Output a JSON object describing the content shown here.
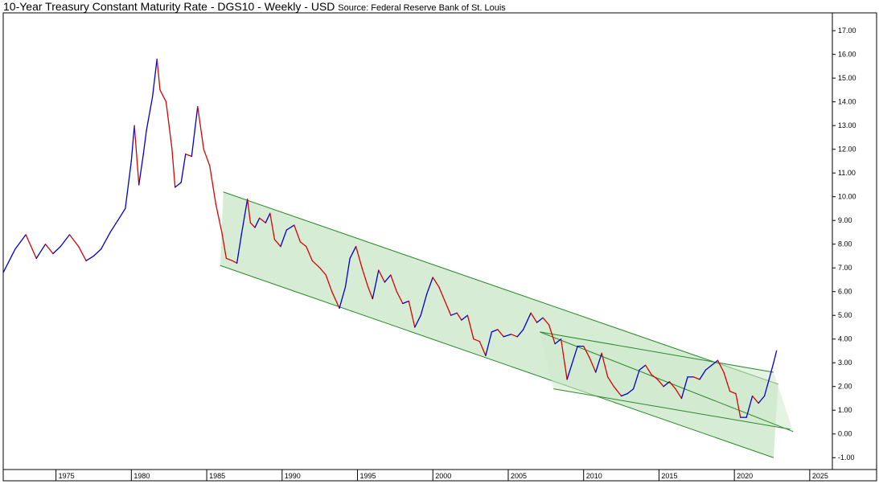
{
  "chart_data": {
    "type": "line",
    "title": "10-Year Treasury Constant Maturity Rate - DGS10 - Weekly - USD",
    "source": "Source: Federal Reserve Bank of St. Louis",
    "xlabel": "",
    "ylabel": "",
    "xlim": [
      1971.5,
      2026.5
    ],
    "ylim": [
      -1.5,
      17.75
    ],
    "x_ticks": [
      1975,
      1980,
      1985,
      1990,
      1995,
      2000,
      2005,
      2010,
      2015,
      2020,
      2025
    ],
    "y_ticks": [
      -1,
      0,
      1,
      2,
      3,
      4,
      5,
      6,
      7,
      8,
      9,
      10,
      11,
      12,
      13,
      14,
      15,
      16,
      17
    ],
    "y_tick_labels": [
      "-1.00",
      "0.00",
      "1.00",
      "2.00",
      "3.00",
      "4.00",
      "5.00",
      "6.00",
      "7.00",
      "8.00",
      "9.00",
      "10.00",
      "11.00",
      "12.00",
      "13.00",
      "14.00",
      "15.00",
      "16.00",
      "17.00"
    ],
    "colors": {
      "up": "#0000cc",
      "down": "#dd0000",
      "channel_line": "#2a8a2a",
      "channel_fill": "#cfe9cc"
    },
    "series": [
      {
        "x": [
          1971.5,
          1972.3,
          1973.0,
          1973.7,
          1974.3,
          1974.8,
          1975.3,
          1975.9,
          1976.5,
          1977.0,
          1977.5,
          1978.0,
          1978.6,
          1979.1,
          1979.6,
          1980.0,
          1980.2,
          1980.5,
          1980.8,
          1981.0,
          1981.4,
          1981.7,
          1981.9,
          1982.3,
          1982.7,
          1982.9,
          1983.3,
          1983.6,
          1984.0,
          1984.4,
          1984.8,
          1985.2,
          1985.6,
          1986.0,
          1986.3,
          1986.7,
          1987.0,
          1987.3,
          1987.7,
          1987.9,
          1988.2,
          1988.5,
          1988.9,
          1989.2,
          1989.5,
          1989.9,
          1990.3,
          1990.8,
          1991.2,
          1991.6,
          1992.0,
          1992.5,
          1992.9,
          1993.3,
          1993.8,
          1994.2,
          1994.5,
          1994.9,
          1995.3,
          1995.7,
          1996.0,
          1996.4,
          1996.8,
          1997.2,
          1997.6,
          1998.0,
          1998.4,
          1998.8,
          1999.2,
          1999.6,
          2000.0,
          2000.4,
          2000.8,
          2001.2,
          2001.6,
          2001.9,
          2002.3,
          2002.7,
          2003.1,
          2003.5,
          2003.9,
          2004.3,
          2004.7,
          2005.2,
          2005.6,
          2006.0,
          2006.5,
          2006.9,
          2007.3,
          2007.7,
          2008.1,
          2008.5,
          2008.9,
          2009.2,
          2009.6,
          2010.0,
          2010.4,
          2010.8,
          2011.2,
          2011.6,
          2012.0,
          2012.5,
          2012.9,
          2013.3,
          2013.7,
          2014.1,
          2014.5,
          2014.9,
          2015.3,
          2015.7,
          2016.1,
          2016.5,
          2016.9,
          2017.3,
          2017.7,
          2018.1,
          2018.5,
          2018.9,
          2019.3,
          2019.7,
          2020.1,
          2020.4,
          2020.8,
          2021.2,
          2021.6,
          2022.0,
          2022.3,
          2022.6,
          2022.8
        ],
        "y": [
          6.8,
          7.8,
          8.4,
          7.4,
          8.0,
          7.6,
          7.9,
          8.4,
          7.9,
          7.3,
          7.5,
          7.8,
          8.5,
          9.0,
          9.5,
          11.5,
          13.0,
          10.5,
          11.8,
          12.8,
          14.2,
          15.8,
          14.5,
          14.0,
          12.0,
          10.4,
          10.6,
          11.8,
          11.7,
          13.8,
          12.0,
          11.3,
          9.7,
          8.5,
          7.4,
          7.3,
          7.2,
          8.4,
          9.9,
          8.9,
          8.7,
          9.1,
          8.9,
          9.3,
          8.2,
          7.9,
          8.6,
          8.8,
          8.1,
          7.9,
          7.3,
          7.0,
          6.7,
          6.0,
          5.3,
          6.2,
          7.4,
          7.9,
          7.0,
          6.2,
          5.7,
          6.9,
          6.4,
          6.7,
          6.0,
          5.5,
          5.6,
          4.5,
          5.0,
          5.9,
          6.6,
          6.2,
          5.6,
          5.0,
          5.1,
          4.8,
          5.0,
          4.0,
          3.9,
          3.3,
          4.3,
          4.4,
          4.1,
          4.2,
          4.1,
          4.4,
          5.1,
          4.7,
          4.9,
          4.6,
          3.8,
          4.0,
          2.3,
          2.9,
          3.7,
          3.7,
          3.2,
          2.6,
          3.4,
          2.4,
          2.0,
          1.6,
          1.7,
          1.9,
          2.7,
          2.9,
          2.5,
          2.3,
          2.0,
          2.2,
          1.9,
          1.5,
          2.4,
          2.4,
          2.3,
          2.7,
          2.9,
          3.1,
          2.6,
          1.8,
          1.7,
          0.7,
          0.7,
          1.6,
          1.3,
          1.6,
          2.3,
          3.0,
          3.5
        ]
      }
    ],
    "channels": [
      {
        "upper": [
          [
            1986.1,
            10.2
          ],
          [
            2022.9,
            2.1
          ]
        ],
        "lower": [
          [
            1985.9,
            7.1
          ],
          [
            2022.6,
            -1.0
          ]
        ]
      },
      {
        "upper": [
          [
            2007.1,
            4.3
          ],
          [
            2023.9,
            0.1
          ]
        ],
        "lower": [
          [
            2008.0,
            1.9
          ],
          [
            2023.7,
            0.2
          ]
        ],
        "apex": [
          [
            2022.6,
            2.6
          ]
        ]
      }
    ]
  }
}
